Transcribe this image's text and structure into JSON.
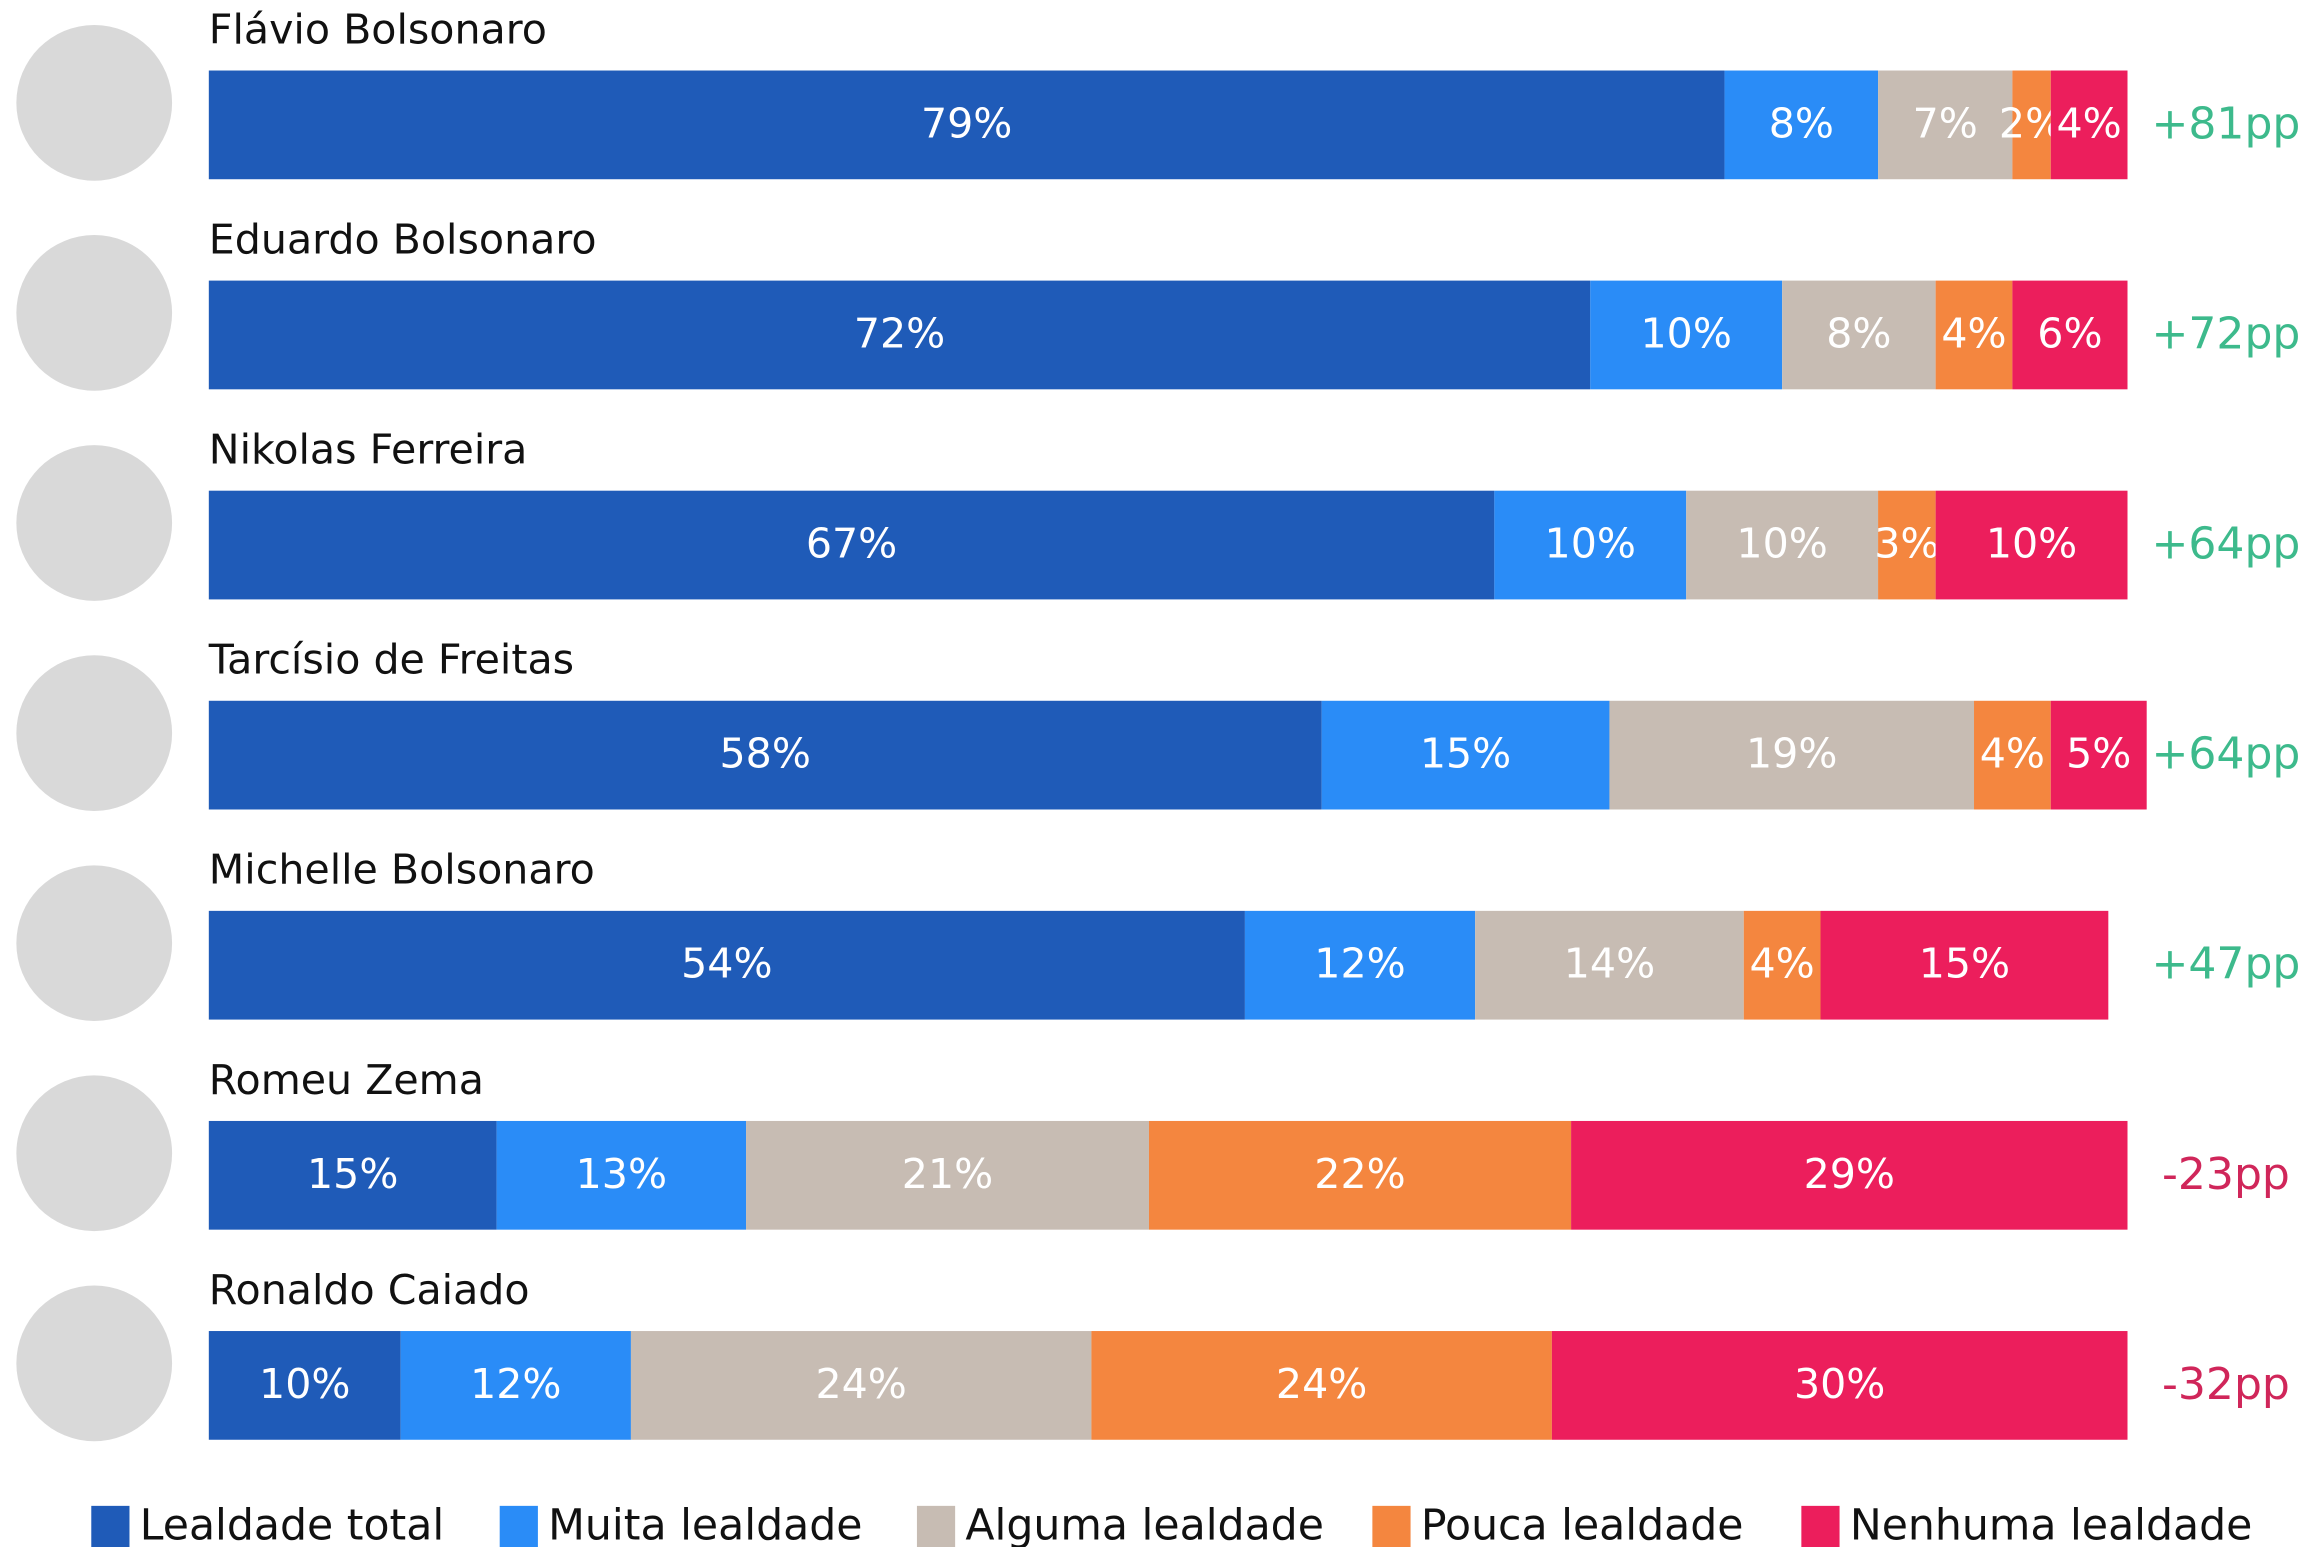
{
  "chart_data": {
    "type": "stacked_barh",
    "categories": [
      "Flávio Bolsonaro",
      "Eduardo Bolsonaro",
      "Nikolas Ferreira",
      "Tarcísio de Freitas",
      "Michelle Bolsonaro",
      "Romeu Zema",
      "Ronaldo Caiado"
    ],
    "xlim": [
      0,
      100
    ],
    "series": [
      {
        "name": "Lealdade total",
        "color": "#1f5bb8",
        "values": [
          79,
          72,
          67,
          58,
          54,
          15,
          10
        ],
        "value_labels": [
          "79%",
          "72%",
          "67%",
          "58%",
          "54%",
          "15%",
          "10%"
        ]
      },
      {
        "name": "Muita lealdade",
        "color": "#2a8cf7",
        "values": [
          8,
          10,
          10,
          15,
          12,
          13,
          12
        ],
        "value_labels": [
          "8%",
          "10%",
          "10%",
          "15%",
          "12%",
          "13%",
          "12%"
        ]
      },
      {
        "name": "Alguma lealdade",
        "color": "#c7bcb3",
        "values": [
          7,
          8,
          10,
          19,
          14,
          21,
          24
        ],
        "value_labels": [
          "7%",
          "8%",
          "10%",
          "19%",
          "14%",
          "21%",
          "24%"
        ]
      },
      {
        "name": "Pouca lealdade",
        "color": "#f4863f",
        "values": [
          2,
          4,
          3,
          4,
          4,
          22,
          24
        ],
        "value_labels": [
          "2%",
          "4%",
          "3%",
          "4%",
          "4%",
          "22%",
          "24%"
        ]
      },
      {
        "name": "Nenhuma lealdade",
        "color": "#ec1e5c",
        "values": [
          4,
          6,
          10,
          5,
          15,
          29,
          30
        ],
        "value_labels": [
          "4%",
          "6%",
          "10%",
          "5%",
          "15%",
          "29%",
          "30%"
        ]
      }
    ],
    "annotations": [
      "+81pp",
      "+72pp",
      "+64pp",
      "+64pp",
      "+47pp",
      "-23pp",
      "-32pp"
    ],
    "annotation_colors": [
      "#3dba8c",
      "#3dba8c",
      "#3dba8c",
      "#3dba8c",
      "#3dba8c",
      "#d0265a",
      "#d0265a"
    ]
  }
}
